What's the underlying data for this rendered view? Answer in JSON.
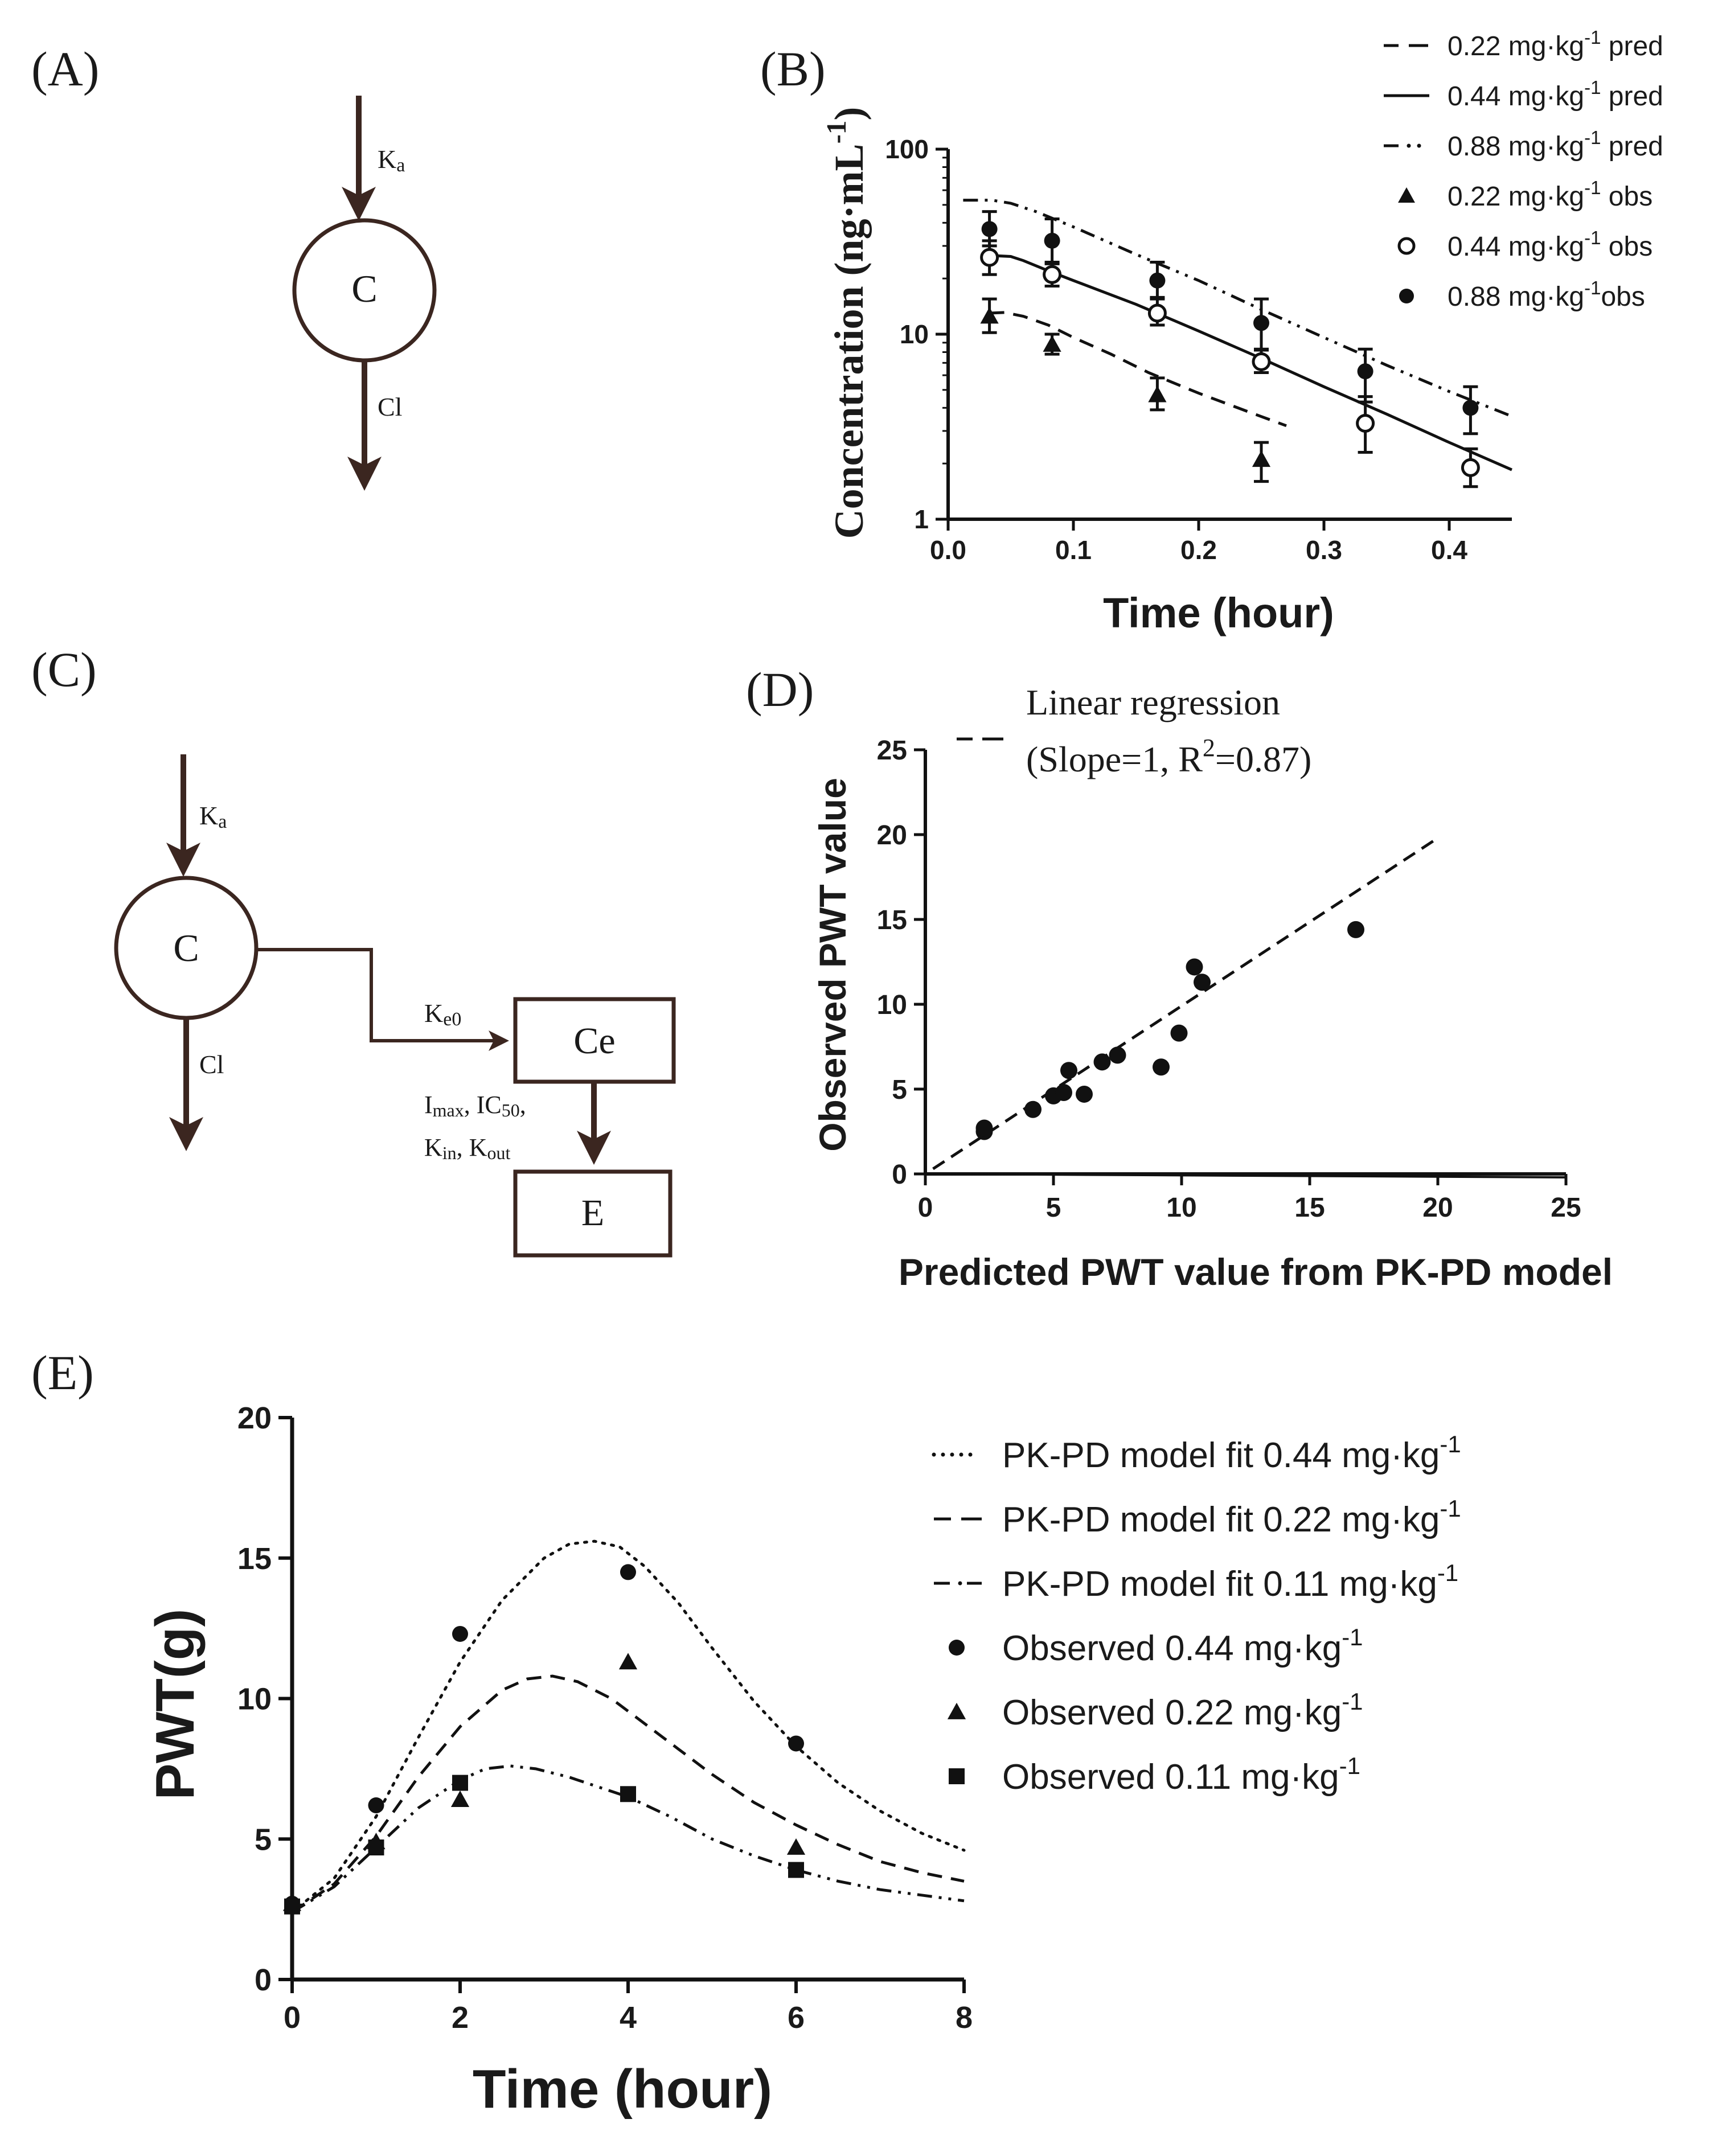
{
  "panel_labels": {
    "a": "(A)",
    "b": "(B)",
    "c": "(C)",
    "d": "(D)",
    "e": "(E)"
  },
  "diagram_a": {
    "nodes": [
      {
        "id": "C",
        "label": "C",
        "shape": "circle"
      }
    ],
    "edges": [
      {
        "label": "Ka",
        "label_main": "K",
        "label_sub": "a",
        "from": "input",
        "to": "C"
      },
      {
        "label": "Cl",
        "from": "C",
        "to": "output"
      }
    ]
  },
  "diagram_c": {
    "nodes": [
      {
        "id": "C",
        "label": "C",
        "shape": "circle"
      },
      {
        "id": "Ce",
        "label": "Ce",
        "shape": "box"
      },
      {
        "id": "E",
        "label": "E",
        "shape": "box"
      }
    ],
    "edges": [
      {
        "label": "Ka",
        "label_main": "K",
        "label_sub": "a",
        "from": "input",
        "to": "C"
      },
      {
        "label": "Cl",
        "from": "C",
        "to": "output"
      },
      {
        "label": "Ke0",
        "label_main": "K",
        "label_sub": "e0",
        "from": "C",
        "to": "Ce"
      },
      {
        "label": "Imax, IC50, Kin, Kout",
        "from": "Ce",
        "to": "E",
        "parts_line1": [
          {
            "t": "I",
            "s": false
          },
          {
            "t": "max",
            "s": true
          },
          {
            "t": ", IC",
            "s": false
          },
          {
            "t": "50",
            "s": true
          },
          {
            "t": ",",
            "s": false
          }
        ],
        "parts_line2": [
          {
            "t": "K",
            "s": false
          },
          {
            "t": "in",
            "s": true
          },
          {
            "t": ", K",
            "s": false
          },
          {
            "t": "out",
            "s": true
          }
        ]
      }
    ]
  },
  "chart_data": [
    {
      "id": "B",
      "type": "line",
      "xlabel": "Time  (hour)",
      "ylabel": "Concentration (ng·mL",
      "ylabel_sup": "-1",
      "ylabel_close": ")",
      "yscale": "log",
      "xlim": [
        0.0,
        0.45
      ],
      "ylim": [
        1,
        100
      ],
      "x_ticks": [
        {
          "value": 0.0,
          "label": "0.0"
        },
        {
          "value": 0.1,
          "label": "0.1"
        },
        {
          "value": 0.2,
          "label": "0.2"
        },
        {
          "value": 0.3,
          "label": "0.3"
        },
        {
          "value": 0.4,
          "label": "0.4"
        }
      ],
      "y_ticks": [
        {
          "value": 1,
          "label": "1"
        },
        {
          "value": 10,
          "label": "10"
        },
        {
          "value": 100,
          "label": "100"
        }
      ],
      "legend_position": "top-right",
      "legend": [
        {
          "text": "0.22 mg·kg",
          "sup": "-1",
          "suffix": " pred",
          "marker": "dashed"
        },
        {
          "text": "0.44 mg·kg",
          "sup": "-1",
          "suffix": " pred",
          "marker": "solid"
        },
        {
          "text": "0.88 mg·kg",
          "sup": "-1",
          "suffix": " pred",
          "marker": "dashdotdot"
        },
        {
          "text": "0.22 mg·kg",
          "sup": "-1",
          "suffix": " obs",
          "marker": "triangle"
        },
        {
          "text": "0.44 mg·kg",
          "sup": "-1",
          "suffix": " obs",
          "marker": "open-circle"
        },
        {
          "text": "0.88 mg·kg",
          "sup": "-1",
          "suffix": "obs",
          "marker": "circle"
        }
      ],
      "lines": [
        {
          "name": "0.22 mg·kg-1 pred",
          "style": "dashed",
          "x": [
            0.033,
            0.045,
            0.06,
            0.08,
            0.1,
            0.13,
            0.16,
            0.2,
            0.24,
            0.27
          ],
          "y": [
            13,
            13.1,
            12.5,
            11.2,
            9.6,
            7.8,
            6.2,
            4.8,
            3.8,
            3.2
          ]
        },
        {
          "name": "0.44 mg·kg-1 pred",
          "style": "solid",
          "x": [
            0.033,
            0.04,
            0.05,
            0.06,
            0.08,
            0.1,
            0.15,
            0.2,
            0.25,
            0.3,
            0.35,
            0.4,
            0.45
          ],
          "y": [
            26,
            26.5,
            26.3,
            25,
            22,
            19.5,
            14.5,
            10.4,
            7.4,
            5.2,
            3.7,
            2.6,
            1.85
          ]
        },
        {
          "name": "0.88 mg·kg-1 pred",
          "style": "dashdotdot",
          "x": [
            0.012,
            0.035,
            0.05,
            0.07,
            0.1,
            0.15,
            0.2,
            0.25,
            0.3,
            0.35,
            0.4,
            0.45
          ],
          "y": [
            53,
            53,
            51,
            46,
            38,
            27,
            19.5,
            13.6,
            9.6,
            6.8,
            4.9,
            3.6
          ]
        }
      ],
      "observed": [
        {
          "name": "0.22 mg·kg-1 obs",
          "marker": "triangle",
          "x": [
            0.033,
            0.083,
            0.167,
            0.25
          ],
          "y": [
            12.5,
            8.8,
            4.7,
            2.1
          ],
          "err_low": [
            10.2,
            7.8,
            3.9,
            1.6
          ],
          "err_high": [
            15.5,
            10.0,
            5.8,
            2.6
          ]
        },
        {
          "name": "0.44 mg·kg-1 obs",
          "marker": "open-circle",
          "x": [
            0.033,
            0.083,
            0.167,
            0.25,
            0.333,
            0.417
          ],
          "y": [
            26,
            21,
            13,
            7.1,
            3.3,
            1.9
          ],
          "err_low": [
            21,
            18.2,
            11.2,
            6.2,
            2.3,
            1.5
          ],
          "err_high": [
            32,
            24.5,
            15.5,
            8.3,
            4.6,
            2.4
          ]
        },
        {
          "name": "0.88 mg·kg-1 obs",
          "marker": "circle",
          "x": [
            0.033,
            0.083,
            0.167,
            0.25,
            0.333,
            0.417
          ],
          "y": [
            37,
            32,
            19.5,
            11.5,
            6.3,
            4.0
          ],
          "err_low": [
            30,
            24,
            15.8,
            8.2,
            4.3,
            2.9
          ],
          "err_high": [
            46,
            42,
            24.5,
            15.5,
            8.3,
            5.2
          ]
        }
      ]
    },
    {
      "id": "D",
      "type": "scatter",
      "xlabel": "Predicted PWT value from PK-PD model",
      "ylabel": "Observed PWT value",
      "xlim": [
        0,
        25
      ],
      "ylim": [
        0,
        25
      ],
      "x_ticks": [
        {
          "value": 0,
          "label": "0"
        },
        {
          "value": 5,
          "label": "5"
        },
        {
          "value": 10,
          "label": "10"
        },
        {
          "value": 15,
          "label": "15"
        },
        {
          "value": 20,
          "label": "20"
        },
        {
          "value": 25,
          "label": "25"
        }
      ],
      "y_ticks": [
        {
          "value": 0,
          "label": "0"
        },
        {
          "value": 5,
          "label": "5"
        },
        {
          "value": 10,
          "label": "10"
        },
        {
          "value": 15,
          "label": "15"
        },
        {
          "value": 20,
          "label": "20"
        },
        {
          "value": 25,
          "label": "25"
        }
      ],
      "legend_position": "top",
      "legend": {
        "line1": "Linear regression",
        "line2_pre": "(Slope=1, R",
        "line2_sup": "2",
        "line2_post": "=0.87)"
      },
      "regression": {
        "x": [
          0.3,
          19.9
        ],
        "y": [
          0.3,
          19.7
        ]
      },
      "baseline": {
        "x": [
          0,
          25
        ],
        "y": [
          0,
          -0.2
        ]
      },
      "points": {
        "x": [
          2.3,
          2.3,
          4.2,
          5.0,
          5.4,
          5.6,
          6.2,
          6.9,
          7.5,
          9.2,
          9.9,
          10.5,
          10.8,
          16.8
        ],
        "y": [
          2.5,
          2.7,
          3.8,
          4.6,
          4.8,
          6.1,
          4.7,
          6.6,
          7.0,
          6.3,
          8.3,
          12.2,
          11.3,
          14.4
        ]
      }
    },
    {
      "id": "E",
      "type": "line",
      "xlabel": "Time  (hour)",
      "ylabel": "PWT(g)",
      "xlim": [
        0,
        8
      ],
      "ylim": [
        0,
        20
      ],
      "x_ticks": [
        {
          "value": 0,
          "label": "0"
        },
        {
          "value": 2,
          "label": "2"
        },
        {
          "value": 4,
          "label": "4"
        },
        {
          "value": 6,
          "label": "6"
        },
        {
          "value": 8,
          "label": "8"
        }
      ],
      "y_ticks": [
        {
          "value": 0,
          "label": "0"
        },
        {
          "value": 5,
          "label": "5"
        },
        {
          "value": 10,
          "label": "10"
        },
        {
          "value": 15,
          "label": "15"
        },
        {
          "value": 20,
          "label": "20"
        }
      ],
      "legend_position": "top-right",
      "legend": [
        {
          "text": "PK-PD model fit 0.44 mg·kg",
          "sup": "-1",
          "marker": "dotted"
        },
        {
          "text": "PK-PD model fit 0.22 mg·kg",
          "sup": "-1",
          "marker": "dashed"
        },
        {
          "text": "PK-PD model fit 0.11 mg·kg",
          "sup": "-1",
          "marker": "dashdotdot"
        },
        {
          "text": "Observed 0.44 mg·kg",
          "sup": "-1",
          "marker": "circle"
        },
        {
          "text": "Observed 0.22 mg·kg",
          "sup": "-1",
          "marker": "triangle"
        },
        {
          "text": "Observed 0.11 mg·kg",
          "sup": "-1",
          "marker": "square"
        }
      ],
      "lines": [
        {
          "name": "PK-PD model fit 0.44 mg·kg-1",
          "style": "dotted",
          "x": [
            0,
            0.5,
            1,
            1.5,
            2,
            2.5,
            3,
            3.3,
            3.6,
            3.9,
            4.2,
            4.6,
            5,
            5.5,
            6,
            6.5,
            7,
            7.5,
            8
          ],
          "y": [
            2.4,
            3.6,
            5.8,
            8.6,
            11.3,
            13.5,
            15.0,
            15.5,
            15.6,
            15.4,
            14.7,
            13.4,
            11.8,
            9.9,
            8.3,
            7.0,
            6.0,
            5.2,
            4.6
          ]
        },
        {
          "name": "PK-PD model fit 0.22 mg·kg-1",
          "style": "dashed",
          "x": [
            0,
            0.5,
            1,
            1.5,
            2,
            2.5,
            2.8,
            3.1,
            3.4,
            3.8,
            4.2,
            4.6,
            5,
            5.5,
            6,
            6.5,
            7,
            7.5,
            8
          ],
          "y": [
            2.4,
            3.4,
            5.1,
            7.2,
            9.0,
            10.3,
            10.7,
            10.8,
            10.6,
            10.0,
            9.1,
            8.2,
            7.3,
            6.3,
            5.5,
            4.8,
            4.2,
            3.8,
            3.5
          ]
        },
        {
          "name": "PK-PD model fit 0.11 mg·kg-1",
          "style": "dashdotdot",
          "x": [
            0,
            0.5,
            1,
            1.5,
            2,
            2.3,
            2.6,
            2.9,
            3.3,
            3.7,
            4,
            4.5,
            5,
            5.5,
            6,
            6.5,
            7,
            7.5,
            8
          ],
          "y": [
            2.4,
            3.3,
            4.7,
            6.1,
            7.1,
            7.5,
            7.6,
            7.5,
            7.2,
            6.8,
            6.5,
            5.8,
            5.0,
            4.4,
            3.9,
            3.5,
            3.2,
            3.0,
            2.8
          ]
        }
      ],
      "observed": [
        {
          "name": "Observed 0.44 mg·kg-1",
          "marker": "circle",
          "x": [
            0,
            1,
            2,
            4,
            6
          ],
          "y": [
            2.7,
            6.2,
            12.3,
            14.5,
            8.4
          ]
        },
        {
          "name": "Observed 0.22 mg·kg-1",
          "marker": "triangle",
          "x": [
            0,
            1,
            2,
            4,
            6
          ],
          "y": [
            2.7,
            4.9,
            6.4,
            11.3,
            4.7
          ]
        },
        {
          "name": "Observed 0.11 mg·kg-1",
          "marker": "square",
          "x": [
            0,
            1,
            2,
            4,
            6
          ],
          "y": [
            2.6,
            4.7,
            7.0,
            6.6,
            3.9
          ]
        }
      ]
    }
  ]
}
